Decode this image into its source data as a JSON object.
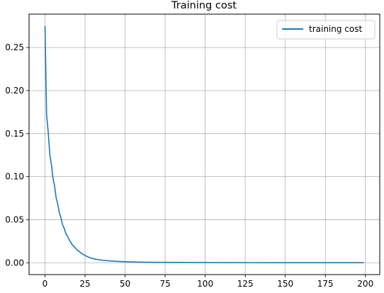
{
  "chart_data": {
    "type": "line",
    "title": "Training cost",
    "xlabel": "",
    "ylabel": "",
    "xlim": [
      -9.95,
      208.95
    ],
    "ylim": [
      -0.01375,
      0.28875
    ],
    "x_ticks": [
      0,
      25,
      50,
      75,
      100,
      125,
      150,
      175,
      200
    ],
    "y_ticks": [
      0.0,
      0.05,
      0.1,
      0.15,
      0.2,
      0.25
    ],
    "x_tick_labels": [
      "0",
      "25",
      "50",
      "75",
      "100",
      "125",
      "150",
      "175",
      "200"
    ],
    "y_tick_labels": [
      "0.00",
      "0.05",
      "0.10",
      "0.15",
      "0.20",
      "0.25"
    ],
    "grid": true,
    "legend_position": "top-right",
    "series": [
      {
        "name": "training cost",
        "color": "#1f77b4",
        "x": [
          0,
          1,
          2,
          3,
          4,
          5,
          6,
          7,
          8,
          9,
          10,
          11,
          12,
          13,
          14,
          15,
          16,
          17,
          18,
          19,
          20,
          22,
          24,
          26,
          28,
          30,
          33,
          36,
          40,
          45,
          50,
          55,
          60,
          70,
          80,
          90,
          100,
          110,
          120,
          130,
          140,
          150,
          160,
          170,
          180,
          190,
          199
        ],
        "values": [
          0.275,
          0.172,
          0.152,
          0.126,
          0.114,
          0.098,
          0.089,
          0.075,
          0.068,
          0.058,
          0.052,
          0.044,
          0.04,
          0.034,
          0.031,
          0.027,
          0.024,
          0.021,
          0.019,
          0.017,
          0.015,
          0.012,
          0.0095,
          0.0075,
          0.006,
          0.0048,
          0.0037,
          0.0029,
          0.0022,
          0.0016,
          0.0012,
          0.0009,
          0.0007,
          0.0005,
          0.0004,
          0.0003,
          0.00025,
          0.0002,
          0.00015,
          0.00012,
          0.0001,
          9e-05,
          8e-05,
          7e-05,
          6e-05,
          5e-05,
          5e-05
        ]
      }
    ]
  }
}
